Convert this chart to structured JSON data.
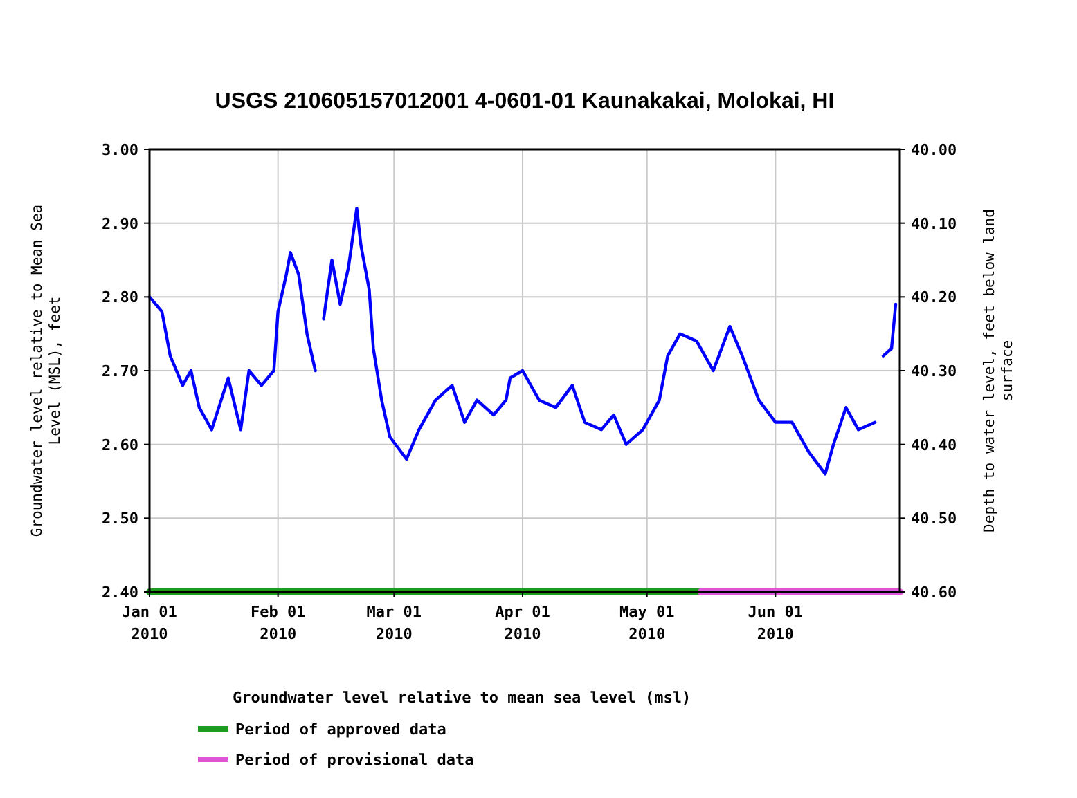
{
  "chart_data": {
    "type": "line",
    "title": "USGS 210605157012001 4-0601-01 Kaunakakai, Molokai, HI",
    "ylabel": "Groundwater level relative to Mean Sea Level (MSL), feet",
    "y2label": "Depth to water level, feet below land surface",
    "legend_title": "Groundwater level relative to mean sea level (msl)",
    "legend": "bottom",
    "grid": true,
    "xlim": [
      "2010-01-01",
      "2010-07-01"
    ],
    "xticks": [
      {
        "value": "2010-01-01",
        "label": "Jan 01\n2010"
      },
      {
        "value": "2010-02-01",
        "label": "Feb 01\n2010"
      },
      {
        "value": "2010-03-01",
        "label": "Mar 01\n2010"
      },
      {
        "value": "2010-04-01",
        "label": "Apr 01\n2010"
      },
      {
        "value": "2010-05-01",
        "label": "May 01\n2010"
      },
      {
        "value": "2010-06-01",
        "label": "Jun 01\n2010"
      }
    ],
    "ylim": [
      2.4,
      3.0
    ],
    "yticks": [
      {
        "value": 2.4,
        "label": "2.40"
      },
      {
        "value": 2.5,
        "label": "2.50"
      },
      {
        "value": 2.6,
        "label": "2.60"
      },
      {
        "value": 2.7,
        "label": "2.70"
      },
      {
        "value": 2.8,
        "label": "2.80"
      },
      {
        "value": 2.9,
        "label": "2.90"
      },
      {
        "value": 3.0,
        "label": "3.00"
      }
    ],
    "y2lim": [
      40.6,
      40.0
    ],
    "y2ticks": [
      {
        "value": 40.6,
        "label": "40.60"
      },
      {
        "value": 40.5,
        "label": "40.50"
      },
      {
        "value": 40.4,
        "label": "40.40"
      },
      {
        "value": 40.3,
        "label": "40.30"
      },
      {
        "value": 40.2,
        "label": "40.20"
      },
      {
        "value": 40.1,
        "label": "40.10"
      },
      {
        "value": 40.0,
        "label": "40.00"
      }
    ],
    "x": [
      "2010-01-01",
      "2010-01-04",
      "2010-01-06",
      "2010-01-09",
      "2010-01-11",
      "2010-01-13",
      "2010-01-16",
      "2010-01-20",
      "2010-01-23",
      "2010-01-25",
      "2010-01-28",
      "2010-01-31",
      "2010-02-01",
      "2010-02-03",
      "2010-02-04",
      "2010-02-06",
      "2010-02-08",
      "2010-02-10",
      "2010-02-11",
      "2010-02-12",
      "2010-02-14",
      "2010-02-16",
      "2010-02-18",
      "2010-02-20",
      "2010-02-21",
      "2010-02-23",
      "2010-02-24",
      "2010-02-26",
      "2010-02-28",
      "2010-03-04",
      "2010-03-07",
      "2010-03-11",
      "2010-03-15",
      "2010-03-18",
      "2010-03-21",
      "2010-03-25",
      "2010-03-28",
      "2010-03-29",
      "2010-04-01",
      "2010-04-05",
      "2010-04-09",
      "2010-04-13",
      "2010-04-16",
      "2010-04-20",
      "2010-04-23",
      "2010-04-26",
      "2010-04-30",
      "2010-05-04",
      "2010-05-06",
      "2010-05-09",
      "2010-05-13",
      "2010-05-17",
      "2010-05-21",
      "2010-05-24",
      "2010-05-28",
      "2010-06-01",
      "2010-06-05",
      "2010-06-09",
      "2010-06-13",
      "2010-06-15",
      "2010-06-18",
      "2010-06-21",
      "2010-06-25",
      "2010-06-26",
      "2010-06-27",
      "2010-06-29",
      "2010-06-30"
    ],
    "series": [
      {
        "type": "line",
        "name": "Period of approved data",
        "color": "#1e9a1e",
        "x": [
          "2010-01-01",
          "2010-05-14"
        ],
        "values": [
          2.4,
          2.4
        ]
      },
      {
        "type": "line",
        "name": "Period of provisional data",
        "color": "#e055d8",
        "x": [
          "2010-05-14",
          "2010-07-01"
        ],
        "values": [
          2.4,
          2.4
        ]
      },
      {
        "color": "#0000ff",
        "values": [
          2.8,
          2.78,
          2.72,
          2.68,
          2.7,
          2.65,
          2.62,
          2.69,
          2.62,
          2.7,
          2.68,
          2.7,
          2.78,
          2.83,
          2.86,
          2.83,
          2.75,
          2.7,
          null,
          2.77,
          2.85,
          2.79,
          2.84,
          2.92,
          2.87,
          2.81,
          2.73,
          2.66,
          2.61,
          2.58,
          2.62,
          2.66,
          2.68,
          2.63,
          2.66,
          2.64,
          2.66,
          2.69,
          2.7,
          2.66,
          2.65,
          2.68,
          2.63,
          2.62,
          2.64,
          2.6,
          2.62,
          2.66,
          2.72,
          2.75,
          2.74,
          2.7,
          2.76,
          2.72,
          2.66,
          2.63,
          2.63,
          2.59,
          2.56,
          2.6,
          2.65,
          2.62,
          2.63,
          null,
          2.72,
          2.73,
          2.79
        ]
      }
    ]
  }
}
